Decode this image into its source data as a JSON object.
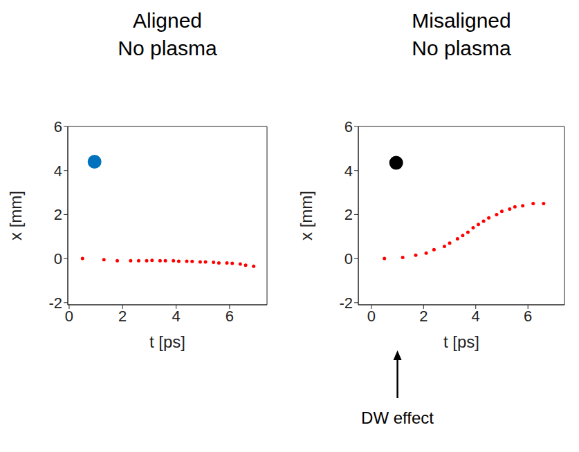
{
  "chart_data": [
    {
      "type": "scatter",
      "title": "Aligned",
      "subtitle": "No plasma",
      "x_label": "t [ps]",
      "y_label": "x [mm]",
      "xlim": [
        -0.05,
        7.4
      ],
      "xticks": [
        0,
        2,
        4,
        6
      ],
      "ylim": [
        -2.1,
        6
      ],
      "yticks": [
        -2,
        0,
        2,
        4,
        6
      ],
      "grid": false,
      "series": [
        {
          "color": "#ff0000",
          "marker": "dot",
          "x": [
            0.5,
            1.3,
            1.8,
            2.3,
            2.6,
            2.9,
            3.1,
            3.4,
            3.6,
            3.9,
            4.1,
            4.4,
            4.6,
            4.9,
            5.1,
            5.4,
            5.6,
            5.9,
            6.1,
            6.4,
            6.6,
            6.9
          ],
          "values": [
            0,
            -0.05,
            -0.1,
            -0.1,
            -0.1,
            -0.1,
            -0.08,
            -0.1,
            -0.1,
            -0.1,
            -0.12,
            -0.12,
            -0.13,
            -0.15,
            -0.15,
            -0.17,
            -0.2,
            -0.2,
            -0.22,
            -0.25,
            -0.3,
            -0.35
          ]
        },
        {
          "color": "#0072bd",
          "marker": "circle",
          "x": [
            0.95
          ],
          "values": [
            4.4
          ]
        }
      ]
    },
    {
      "type": "scatter",
      "title": "Misaligned",
      "subtitle": "No plasma",
      "x_label": "t [ps]",
      "y_label": "x [mm]",
      "xlim": [
        -0.5,
        7.4
      ],
      "xticks": [
        0,
        2,
        4,
        6
      ],
      "ylim": [
        -2.1,
        6
      ],
      "yticks": [
        -2,
        0,
        2,
        4,
        6
      ],
      "grid": false,
      "series": [
        {
          "color": "#ff0000",
          "marker": "dot",
          "x": [
            0.5,
            1.2,
            1.7,
            2.1,
            2.4,
            2.8,
            3.0,
            3.3,
            3.5,
            3.7,
            3.9,
            4.1,
            4.3,
            4.5,
            4.8,
            5.0,
            5.3,
            5.5,
            5.8,
            6.2,
            6.6
          ],
          "values": [
            0,
            0.05,
            0.15,
            0.25,
            0.4,
            0.55,
            0.7,
            0.9,
            1.05,
            1.2,
            1.4,
            1.55,
            1.7,
            1.85,
            2.0,
            2.15,
            2.25,
            2.35,
            2.4,
            2.5,
            2.5
          ]
        },
        {
          "color": "#000000",
          "marker": "circle",
          "x": [
            0.95
          ],
          "values": [
            4.35
          ]
        }
      ],
      "annotations": [
        {
          "text": "DW effect",
          "x": 1.0
        }
      ]
    }
  ]
}
